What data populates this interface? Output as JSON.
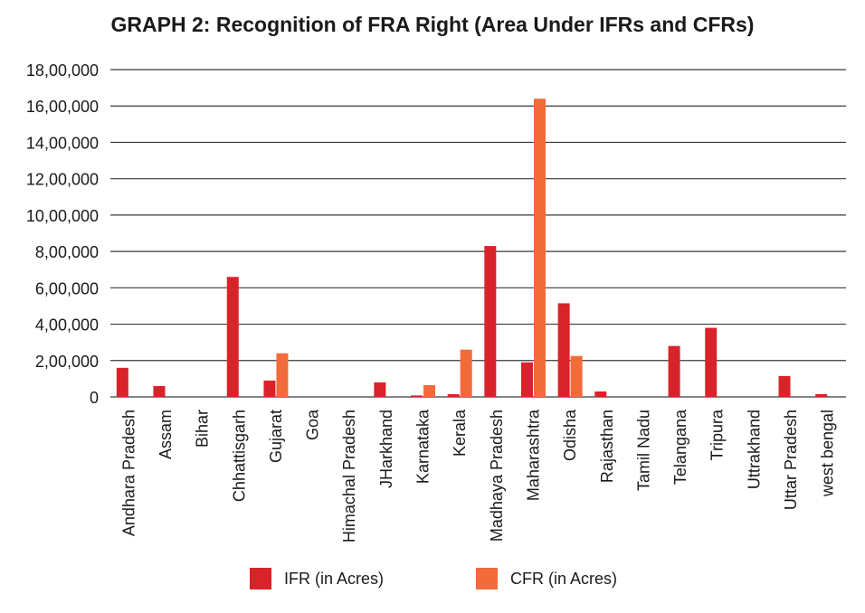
{
  "chart_data": {
    "type": "bar",
    "title": "GRAPH 2: Recognition of FRA Right (Area Under IFRs and CFRs)",
    "xlabel": "",
    "ylabel": "",
    "ylim": [
      0,
      1800000
    ],
    "yticks": [
      {
        "value": 0,
        "label": "0"
      },
      {
        "value": 200000,
        "label": "2,00,000"
      },
      {
        "value": 400000,
        "label": "4,00,000"
      },
      {
        "value": 600000,
        "label": "6,00,000"
      },
      {
        "value": 800000,
        "label": "8,00,000"
      },
      {
        "value": 1000000,
        "label": "10,00,000"
      },
      {
        "value": 1200000,
        "label": "12,00,000"
      },
      {
        "value": 1400000,
        "label": "14,00,000"
      },
      {
        "value": 1600000,
        "label": "16,00,000"
      },
      {
        "value": 1800000,
        "label": "18,00,000"
      }
    ],
    "grid": true,
    "legend_position": "bottom",
    "categories": [
      "Andhara Pradesh",
      "Assam",
      "Bihar",
      "Chhattisgarh",
      "Gujarat",
      "Goa",
      "Himachal Pradesh",
      "JHarkhand",
      "Karnataka",
      "Kerala",
      "Madhaya Pradesh",
      "Maharashtra",
      "Odisha",
      "Rajasthan",
      "Tamil Nadu",
      "Telangana",
      "Tripura",
      "Uttrakhand",
      "Uttar Pradesh",
      "west bengal"
    ],
    "series": [
      {
        "name": "IFR (in Acres)",
        "color": "#d8232a",
        "values": [
          160000,
          60000,
          0,
          660000,
          90000,
          0,
          0,
          80000,
          8000,
          15000,
          830000,
          190000,
          515000,
          30000,
          0,
          280000,
          380000,
          0,
          115000,
          15000
        ]
      },
      {
        "name": "CFR (in Acres)",
        "color": "#f26b3a",
        "values": [
          0,
          0,
          0,
          0,
          240000,
          0,
          0,
          0,
          65000,
          260000,
          0,
          1640000,
          225000,
          0,
          0,
          0,
          0,
          0,
          0,
          0
        ]
      }
    ]
  }
}
